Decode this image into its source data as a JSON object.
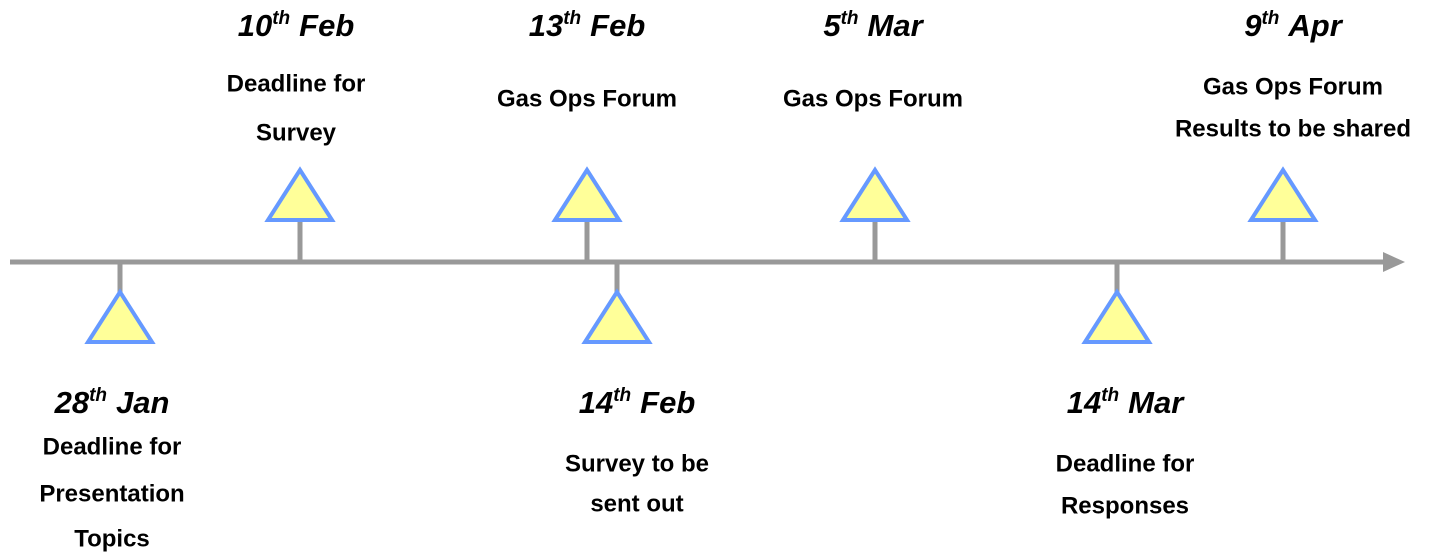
{
  "events": [
    {
      "date": {
        "day": "28",
        "suffix": "th",
        "month": "Jan"
      },
      "lines": [
        "Deadline for",
        "Presentation",
        "Topics"
      ]
    },
    {
      "date": {
        "day": "10",
        "suffix": "th",
        "month": "Feb"
      },
      "lines": [
        "Deadline for",
        "Survey"
      ]
    },
    {
      "date": {
        "day": "13",
        "suffix": "th",
        "month": "Feb"
      },
      "lines": [
        "Gas Ops Forum"
      ]
    },
    {
      "date": {
        "day": "14",
        "suffix": "th",
        "month": "Feb"
      },
      "lines": [
        "Survey to be",
        "sent out"
      ]
    },
    {
      "date": {
        "day": "5",
        "suffix": "th",
        "month": "Mar"
      },
      "lines": [
        "Gas Ops Forum"
      ]
    },
    {
      "date": {
        "day": "14",
        "suffix": "th",
        "month": "Mar"
      },
      "lines": [
        "Deadline for",
        "Responses"
      ]
    },
    {
      "date": {
        "day": "9",
        "suffix": "th",
        "month": "Apr"
      },
      "lines": [
        "Gas Ops Forum",
        "Results to be shared"
      ]
    }
  ]
}
